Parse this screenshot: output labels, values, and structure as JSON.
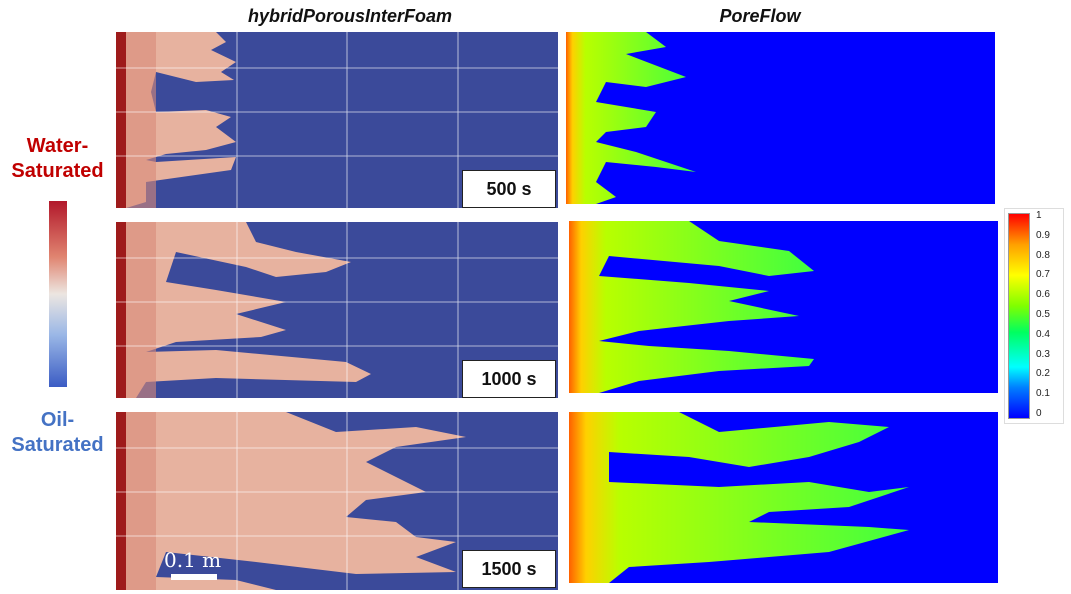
{
  "titles": {
    "left": "hybridPorousInterFoam",
    "right": "PoreFlow"
  },
  "side_labels": {
    "top": [
      "Water-",
      "Saturated"
    ],
    "bottom": [
      "Oil-",
      "Saturated"
    ]
  },
  "times": [
    "500 s",
    "1000 s",
    "1500 s"
  ],
  "scale_label": "0.1 m",
  "colorbar_ticks": [
    "1",
    "0.9",
    "0.8",
    "0.7",
    "0.6",
    "0.5",
    "0.4",
    "0.3",
    "0.2",
    "0.1",
    "0"
  ],
  "colors": {
    "water": "#b2182b",
    "oil": "#3b4a9a",
    "poreflow_bg": "#0000ff",
    "label_red": "#c00000",
    "label_blue": "#4472c4"
  }
}
